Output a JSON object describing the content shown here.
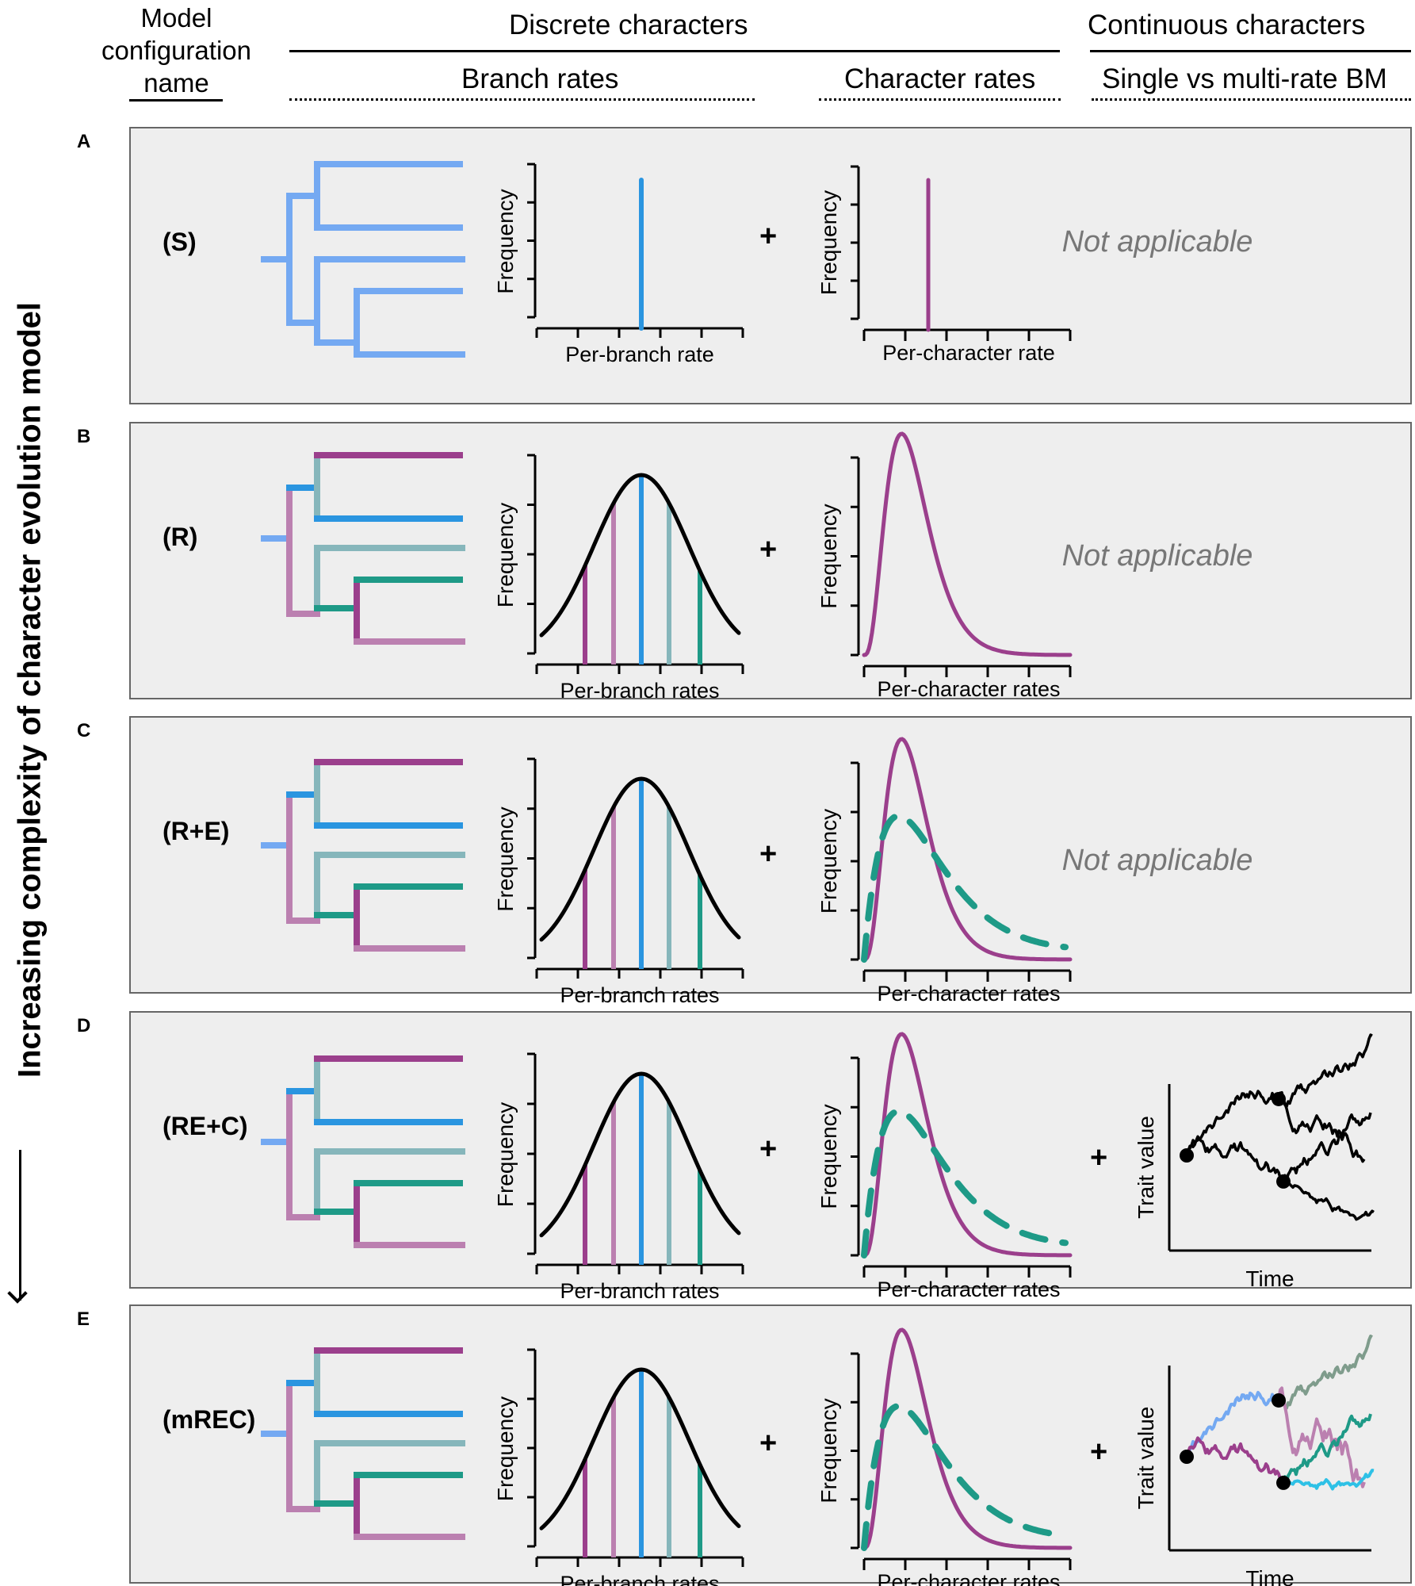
{
  "header": {
    "model_config": "Model configuration name",
    "discrete": "Discrete characters",
    "branch_rates": "Branch rates",
    "character_rates": "Character rates",
    "continuous": "Continuous characters",
    "single_multi": "Single vs  multi-rate BM"
  },
  "side_label": "Increasing complexity of character evolution model",
  "axis": {
    "frequency": "Frequency",
    "per_branch_rate": "Per-branch rate",
    "per_branch_rates": "Per-branch rates",
    "per_character_rate": "Per-character rate",
    "per_character_rates": "Per-character rates",
    "trait_value": "Trait value",
    "time": "Time"
  },
  "plus": "+",
  "not_applicable": "Not applicable",
  "colors": {
    "light_blue": "#74a9f2",
    "blue": "#2a95e0",
    "purple": "#9b3f8c",
    "pink": "#bb80b0",
    "grey_teal": "#86b6bb",
    "teal": "#1e9a87",
    "cyan": "#2ec1e6",
    "sage": "#7f9c8c",
    "panel_bg": "#eeeeee",
    "na_text": "#777777"
  },
  "panels": [
    {
      "letter": "A",
      "name": "(S)",
      "branch_rates": "single",
      "character_rates": "single",
      "continuous": "not_applicable",
      "branch_label": "per_branch_rate",
      "char_label": "per_character_rate"
    },
    {
      "letter": "B",
      "name": "(R)",
      "branch_rates": "relaxed",
      "character_rates": "gamma",
      "continuous": "not_applicable",
      "branch_label": "per_branch_rates",
      "char_label": "per_character_rates"
    },
    {
      "letter": "C",
      "name": "(R+E)",
      "branch_rates": "relaxed",
      "character_rates": "gamma_plus_exp",
      "continuous": "not_applicable",
      "branch_label": "per_branch_rates",
      "char_label": "per_character_rates"
    },
    {
      "letter": "D",
      "name": "(RE+C)",
      "branch_rates": "relaxed",
      "character_rates": "gamma_plus_exp",
      "continuous": "single_rate_bm",
      "branch_label": "per_branch_rates",
      "char_label": "per_character_rates"
    },
    {
      "letter": "E",
      "name": "(mREC)",
      "branch_rates": "relaxed",
      "character_rates": "gamma_plus_exp",
      "continuous": "multi_rate_bm",
      "branch_label": "per_branch_rates",
      "char_label": "per_character_rates"
    }
  ]
}
